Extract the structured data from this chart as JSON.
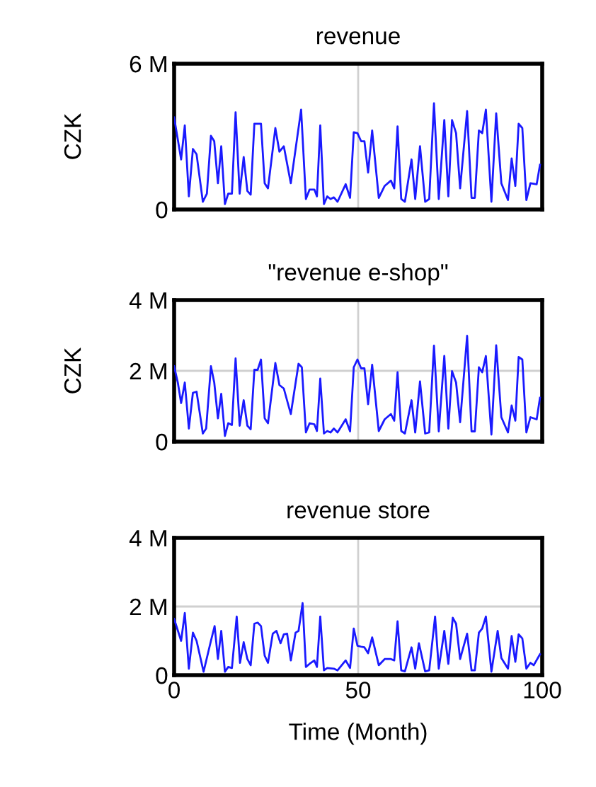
{
  "chart_data": [
    {
      "type": "line",
      "title": "revenue",
      "ylabel": "CZK",
      "xlim": [
        0,
        100
      ],
      "xticks": [
        0,
        50,
        100
      ],
      "ylim": [
        0,
        6
      ],
      "yticks": [
        {
          "value": 0,
          "label": "0"
        },
        {
          "value": 6,
          "label": "6 M"
        }
      ],
      "grid": true,
      "tick_labels": "y",
      "series": [
        {
          "color": "#1a1aff",
          "x": [
            0,
            1.9,
            2.9,
            4.0,
            5.1,
            6.1,
            7.8,
            8.9,
            10.0,
            10.9,
            11.9,
            12.8,
            13.8,
            14.7,
            15.7,
            16.7,
            17.8,
            18.9,
            19.9,
            20.8,
            21.8,
            23.6,
            24.6,
            25.5,
            27.5,
            28.6,
            29.8,
            31.7,
            34.5,
            35.8,
            36.8,
            38.1,
            38.8,
            39.7,
            40.7,
            41.6,
            42.5,
            43.4,
            44.4,
            46.6,
            47.8,
            48.8,
            49.8,
            50.8,
            51.7,
            52.7,
            53.8,
            55.6,
            57.2,
            58.9,
            59.8,
            60.7,
            61.7,
            62.7,
            64.5,
            65.5,
            66.8,
            68.2,
            69.3,
            70.6,
            71.9,
            73.4,
            74.5,
            75.5,
            76.6,
            77.7,
            79.6,
            80.8,
            81.7,
            82.8,
            83.7,
            84.7,
            86.2,
            87.5,
            88.9,
            90.7,
            91.7,
            92.7,
            93.6,
            94.6,
            95.7,
            96.8,
            98.5,
            99.4
          ],
          "values": [
            3.79,
            2.06,
            3.46,
            0.54,
            2.49,
            2.27,
            0.32,
            0.65,
            3.03,
            2.81,
            1.08,
            2.6,
            0.22,
            0.65,
            0.65,
            4.0,
            0.65,
            2.16,
            0.76,
            0.61,
            3.53,
            3.53,
            1.08,
            0.87,
            3.35,
            2.38,
            2.6,
            1.08,
            4.11,
            0.43,
            0.82,
            0.82,
            0.54,
            3.46,
            0.22,
            0.54,
            0.43,
            0.5,
            0.32,
            1.04,
            0.48,
            3.18,
            3.14,
            2.81,
            2.81,
            1.52,
            3.25,
            0.48,
            0.97,
            1.19,
            0.87,
            3.42,
            0.43,
            0.32,
            2.06,
            0.43,
            2.6,
            0.32,
            0.43,
            4.37,
            0.43,
            3.68,
            0.54,
            3.68,
            3.14,
            0.87,
            4.05,
            0.48,
            0.48,
            3.25,
            3.14,
            4.11,
            0.32,
            3.96,
            1.08,
            0.39,
            2.1,
            0.97,
            3.53,
            3.35,
            0.39,
            1.08,
            1.04,
            1.84
          ]
        }
      ]
    },
    {
      "type": "line",
      "title": "\"revenue e-shop\"",
      "ylabel": "CZK",
      "xlim": [
        0,
        100
      ],
      "xticks": [
        0,
        50,
        100
      ],
      "ylim": [
        0,
        4
      ],
      "yticks": [
        {
          "value": 0,
          "label": "0"
        },
        {
          "value": 2,
          "label": "2 M"
        },
        {
          "value": 4,
          "label": "4 M"
        }
      ],
      "grid": true,
      "tick_labels": "y",
      "series": [
        {
          "color": "#1a1aff",
          "x": [
            0,
            1.0,
            1.9,
            2.9,
            4.0,
            5.1,
            6.1,
            7.8,
            8.7,
            10.0,
            10.9,
            11.9,
            12.8,
            13.8,
            14.7,
            15.7,
            16.7,
            17.8,
            18.9,
            19.9,
            20.8,
            21.8,
            22.7,
            23.6,
            24.6,
            25.5,
            27.5,
            28.6,
            29.8,
            31.7,
            33.8,
            34.7,
            35.8,
            36.8,
            38.1,
            38.8,
            39.7,
            40.7,
            41.6,
            42.5,
            43.4,
            44.4,
            46.6,
            47.8,
            48.8,
            49.8,
            50.8,
            51.7,
            52.7,
            53.8,
            55.6,
            57.2,
            58.9,
            59.8,
            60.7,
            61.7,
            62.7,
            64.5,
            65.5,
            66.8,
            68.2,
            69.3,
            70.6,
            71.9,
            73.4,
            74.5,
            75.5,
            76.6,
            77.7,
            79.6,
            80.8,
            81.7,
            82.8,
            83.7,
            84.7,
            86.2,
            87.5,
            88.9,
            90.7,
            91.7,
            92.7,
            93.6,
            94.6,
            95.7,
            96.8,
            98.5,
            99.4
          ],
          "values": [
            2.13,
            1.67,
            1.09,
            1.67,
            0.37,
            1.38,
            1.41,
            0.23,
            0.37,
            2.13,
            1.67,
            0.66,
            1.35,
            0.16,
            0.52,
            0.47,
            2.35,
            0.45,
            1.17,
            0.45,
            0.35,
            2.03,
            2.03,
            2.32,
            0.66,
            0.52,
            2.22,
            1.6,
            1.5,
            0.78,
            2.2,
            2.1,
            0.26,
            0.52,
            0.49,
            0.3,
            1.78,
            0.23,
            0.3,
            0.26,
            0.37,
            0.26,
            0.63,
            0.29,
            2.1,
            2.32,
            2.07,
            2.07,
            1.06,
            2.17,
            0.3,
            0.63,
            0.78,
            0.59,
            1.96,
            0.3,
            0.23,
            1.17,
            0.26,
            1.7,
            0.23,
            0.26,
            2.71,
            0.29,
            2.42,
            0.37,
            1.99,
            1.67,
            0.55,
            2.99,
            0.29,
            0.29,
            2.1,
            1.96,
            2.42,
            0.2,
            2.72,
            0.69,
            0.26,
            1.02,
            0.59,
            2.39,
            2.32,
            0.26,
            0.69,
            0.63,
            1.24
          ]
        }
      ]
    },
    {
      "type": "line",
      "title": "revenue store",
      "xlabel": "Time (Month)",
      "xlim": [
        0,
        100
      ],
      "xticks": [
        0,
        50,
        100
      ],
      "ylim": [
        0,
        4
      ],
      "yticks": [
        {
          "value": 0,
          "label": "0"
        },
        {
          "value": 2,
          "label": "2 M"
        },
        {
          "value": 4,
          "label": "4 M"
        }
      ],
      "grid": true,
      "series": [
        {
          "color": "#1a1aff",
          "x": [
            0,
            1.9,
            2.9,
            4.0,
            5.1,
            6.1,
            8.0,
            10.0,
            11.0,
            11.9,
            12.8,
            13.8,
            14.7,
            15.7,
            17.0,
            17.9,
            18.9,
            19.9,
            20.8,
            21.8,
            22.7,
            23.6,
            24.6,
            25.5,
            26.8,
            27.8,
            28.9,
            29.8,
            30.7,
            31.7,
            33.0,
            33.8,
            34.9,
            35.8,
            36.8,
            38.1,
            38.8,
            39.7,
            40.7,
            41.6,
            43.4,
            44.4,
            46.6,
            47.8,
            48.8,
            49.8,
            50.8,
            51.7,
            52.7,
            53.8,
            55.6,
            57.2,
            58.9,
            59.8,
            60.7,
            61.7,
            62.7,
            64.5,
            65.5,
            66.5,
            68.2,
            69.3,
            70.9,
            71.9,
            73.4,
            74.5,
            75.7,
            76.6,
            77.7,
            79.6,
            80.8,
            81.7,
            82.8,
            83.7,
            84.7,
            86.2,
            87.9,
            88.9,
            90.7,
            91.7,
            92.7,
            93.6,
            94.6,
            95.7,
            96.8,
            97.7,
            99.4
          ],
          "values": [
            1.64,
            1.0,
            1.81,
            0.19,
            1.24,
            1.0,
            0.1,
            1.0,
            1.43,
            0.47,
            1.29,
            0.1,
            0.24,
            0.21,
            1.71,
            0.36,
            0.96,
            0.47,
            0.29,
            1.5,
            1.53,
            1.43,
            0.57,
            0.36,
            1.21,
            1.29,
            0.93,
            1.19,
            1.21,
            0.43,
            1.24,
            1.29,
            2.1,
            0.24,
            0.33,
            0.43,
            0.24,
            1.71,
            0.14,
            0.21,
            0.19,
            0.14,
            0.43,
            0.21,
            1.36,
            0.86,
            0.83,
            0.81,
            0.64,
            1.1,
            0.29,
            0.47,
            0.47,
            0.43,
            1.57,
            0.14,
            0.11,
            0.81,
            0.19,
            0.93,
            0.11,
            0.14,
            1.71,
            0.19,
            1.29,
            0.33,
            1.67,
            1.5,
            0.47,
            1.21,
            0.14,
            0.14,
            1.24,
            1.36,
            1.71,
            0.1,
            1.29,
            0.5,
            0.19,
            1.14,
            0.39,
            1.19,
            1.07,
            0.19,
            0.36,
            0.29,
            0.61
          ]
        }
      ]
    }
  ]
}
